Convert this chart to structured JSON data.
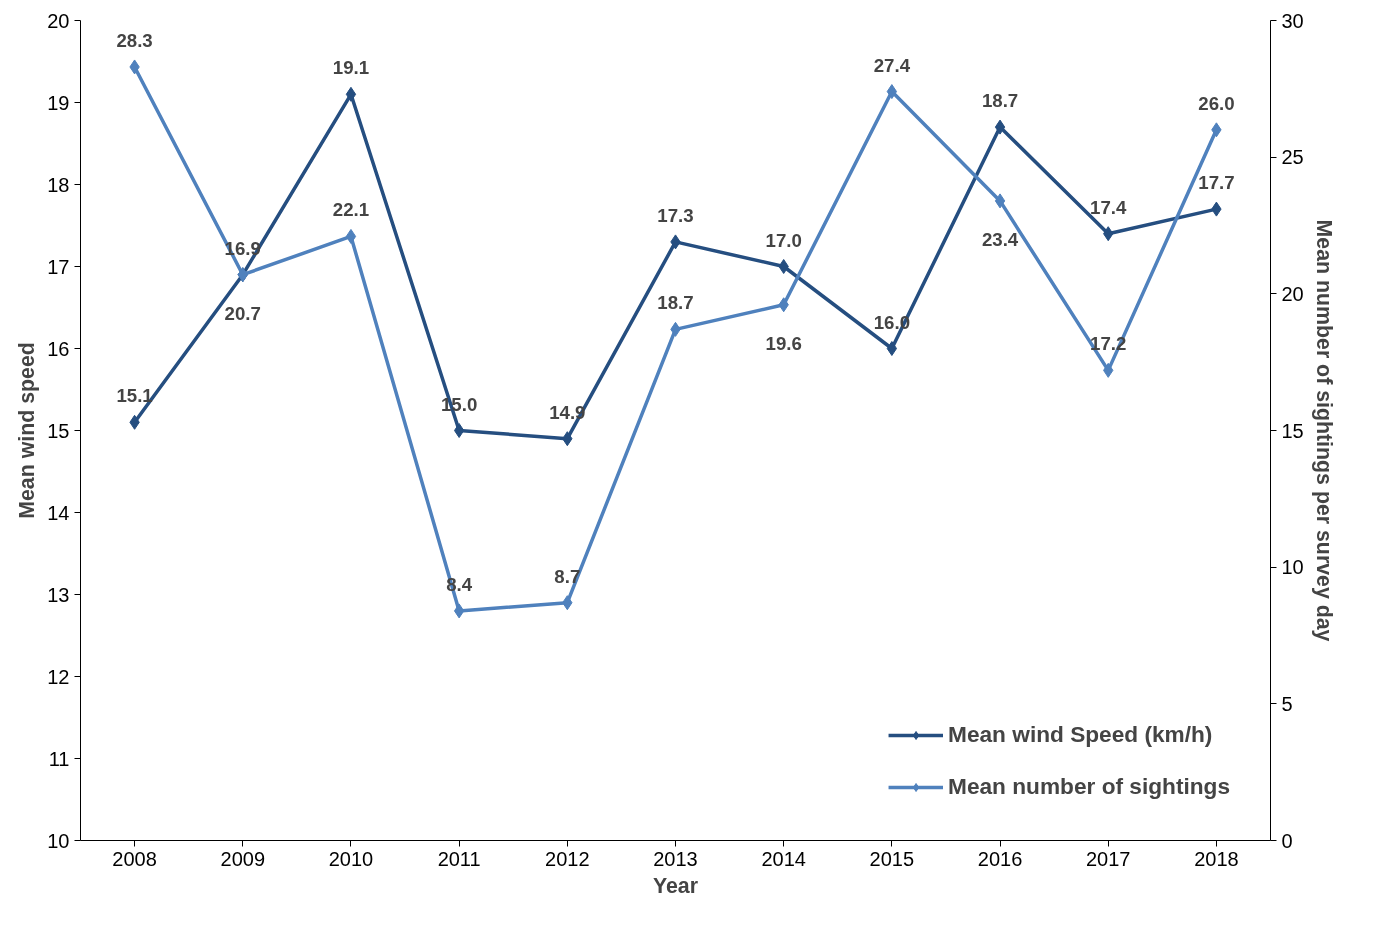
{
  "chart_data": {
    "type": "line",
    "xlabel": "Year",
    "ylabel": "Mean wind speed",
    "y2label": "Mean number of sightings per survey day",
    "categories": [
      "2008",
      "2009",
      "2010",
      "2011",
      "2012",
      "2013",
      "2014",
      "2015",
      "2016",
      "2017",
      "2018"
    ],
    "series": [
      {
        "name": "Mean wind Speed (km/h)",
        "color": "#254e80",
        "values": [
          15.1,
          16.9,
          19.1,
          15.0,
          14.9,
          17.3,
          17.0,
          16.0,
          18.7,
          17.4,
          17.7
        ],
        "value_labels": [
          "15.1",
          "16.9",
          "19.1",
          "15.0",
          "14.9",
          "17.3",
          "17.0",
          "16.0",
          "18.7",
          "17.4",
          "17.7"
        ]
      },
      {
        "name": "Mean number of sightings",
        "color": "#4f81bd",
        "axis": "y2",
        "values": [
          28.3,
          20.7,
          22.1,
          8.4,
          8.7,
          18.7,
          19.6,
          27.4,
          23.4,
          17.2,
          26.0
        ],
        "value_labels": [
          "28.3",
          "20.7",
          "22.1",
          "8.4",
          "8.7",
          "18.7",
          "19.6",
          "27.4",
          "23.4",
          "17.2",
          "26.0"
        ]
      }
    ],
    "ylim": [
      10,
      20
    ],
    "yticks": [
      10,
      11,
      12,
      13,
      14,
      15,
      16,
      17,
      18,
      19,
      20
    ],
    "y2lim": [
      0,
      30
    ],
    "y2ticks": [
      0,
      5,
      10,
      15,
      20,
      25,
      30
    ],
    "grid": false,
    "legend": "bottom right",
    "marker": "diamond",
    "line_style": "solid"
  }
}
